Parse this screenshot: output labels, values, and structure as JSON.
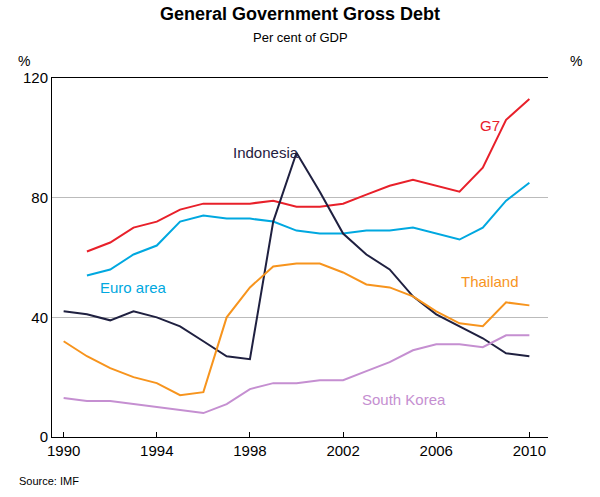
{
  "chart_data": {
    "type": "line",
    "title": "General Government Gross Debt",
    "subtitle": "Per cent of GDP",
    "ylabel": "%",
    "y2label": "%",
    "source": "Source: IMF",
    "x": [
      1990,
      1991,
      1992,
      1993,
      1994,
      1995,
      1996,
      1997,
      1998,
      1999,
      2000,
      2001,
      2002,
      2003,
      2004,
      2005,
      2006,
      2007,
      2008,
      2009,
      2010
    ],
    "series": [
      {
        "name": "G7",
        "color": "#e8202a",
        "values": [
          null,
          62,
          65,
          70,
          72,
          76,
          78,
          78,
          78,
          79,
          77,
          77,
          78,
          81,
          84,
          86,
          84,
          82,
          90,
          106,
          113
        ]
      },
      {
        "name": "Euro area",
        "color": "#00a8e0",
        "values": [
          null,
          54,
          56,
          61,
          64,
          72,
          74,
          73,
          73,
          72,
          69,
          68,
          68,
          69,
          69,
          70,
          68,
          66,
          70,
          79,
          85
        ]
      },
      {
        "name": "Indonesia",
        "color": "#1f2040",
        "values": [
          42,
          41,
          39,
          42,
          40,
          37,
          32,
          27,
          26,
          72,
          95,
          82,
          68,
          61,
          56,
          47,
          41,
          37,
          33,
          28,
          27
        ]
      },
      {
        "name": "Thailand",
        "color": "#f7941d",
        "values": [
          32,
          27,
          23,
          20,
          18,
          14,
          15,
          40,
          50,
          57,
          58,
          58,
          55,
          51,
          50,
          47,
          42,
          38,
          37,
          45,
          44
        ]
      },
      {
        "name": "South Korea",
        "color": "#c58fd1",
        "values": [
          13,
          12,
          12,
          11,
          10,
          9,
          8,
          11,
          16,
          18,
          18,
          19,
          19,
          22,
          25,
          29,
          31,
          31,
          30,
          34,
          34
        ]
      }
    ],
    "xlim": [
      1989.5,
      2010.8
    ],
    "xticks": [
      1990,
      1994,
      1998,
      2002,
      2006,
      2010
    ],
    "ylim": [
      0,
      120
    ],
    "yticks": [
      0,
      40,
      80,
      120
    ],
    "y2lim": [
      0,
      120
    ],
    "y2ticks": [
      0,
      40,
      80,
      120
    ],
    "grid": true
  }
}
